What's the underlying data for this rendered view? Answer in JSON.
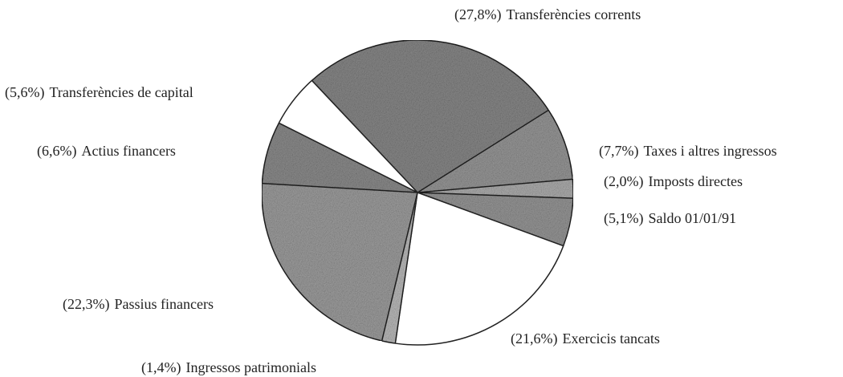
{
  "chart_data": {
    "type": "pie",
    "categories": [
      "Transferències corrents",
      "Taxes i altres ingressos",
      "Imposts directes",
      "Saldo 01/01/91",
      "Exercicis tancats",
      "Ingressos patrimonials",
      "Passius financers",
      "Actius financers",
      "Transferències de capital"
    ],
    "values": [
      27.8,
      7.7,
      2.0,
      5.1,
      21.6,
      1.4,
      22.3,
      6.6,
      5.6
    ],
    "value_labels": [
      "(27,8%)",
      "(7,7%)",
      "(2,0%)",
      "(5,1%)",
      "(21,6%)",
      "(1,4%)",
      "(22,3%)",
      "(6,6%)",
      "(5,6%)"
    ],
    "colors": [
      "#8a8a8a",
      "#9a9a9a",
      "#b0b0b0",
      "#999999",
      "#ffffff",
      "#bdbdbd",
      "#a0a0a0",
      "#8e8e8e",
      "#ffffff"
    ]
  }
}
